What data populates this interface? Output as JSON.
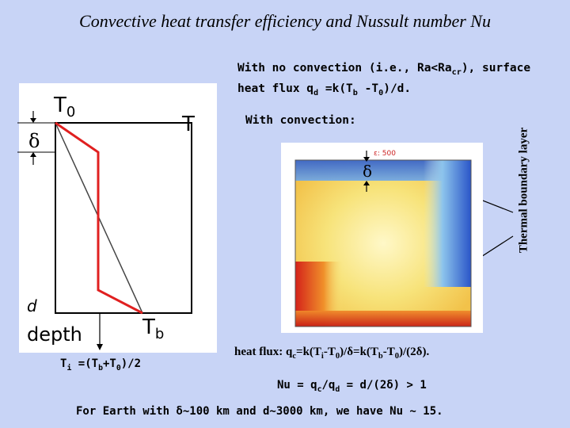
{
  "title": "Convective heat transfer efficiency and Nussult number Nu",
  "no_convection": {
    "line1_a": "With no convection (i.e., Ra<Ra",
    "line1_sub": "cr",
    "line1_b": "), surface",
    "line2_a": "heat flux q",
    "line2_sub1": "d",
    "line2_b": " =k(T",
    "line2_sub2": "b",
    "line2_c": " -T",
    "line2_sub3": "0",
    "line2_d": ")/d."
  },
  "with_convection": "With convection:",
  "diagram": {
    "t0_main": "T",
    "t0_sub": "0",
    "t_label": "T",
    "tb_main": "T",
    "tb_sub": "b",
    "depth": "depth",
    "d_label": "d",
    "delta_left": "δ",
    "delta_sim": "δ",
    "sim_tag": "ε: 500"
  },
  "thermal_boundary_layer": "Thermal boundary layer",
  "ti": {
    "a": "T",
    "sub1": "i",
    "b": " =(T",
    "sub2": "b",
    "c": "+T",
    "sub3": "0",
    "d": ")/2"
  },
  "heat_flux": {
    "a": "heat flux: q",
    "sub1": "c",
    "b": "=k(T",
    "sub2": "i",
    "c": "-T",
    "sub3": "0",
    "d": ")/δ=k(T",
    "sub4": "b",
    "e": "-T",
    "sub5": "0",
    "f": ")/(2δ)."
  },
  "nu": {
    "a": "Nu = q",
    "sub1": "c",
    "b": "/q",
    "sub2": "d",
    "c": " = d/(2δ) > 1"
  },
  "earth": "For Earth with δ~100 km and d~3000 km, we have Nu ~ 15.",
  "colors": {
    "background": "#c8d4f6",
    "profile_red": "#e02020",
    "hot": "#d4221a",
    "cold": "#3f6fd8"
  }
}
